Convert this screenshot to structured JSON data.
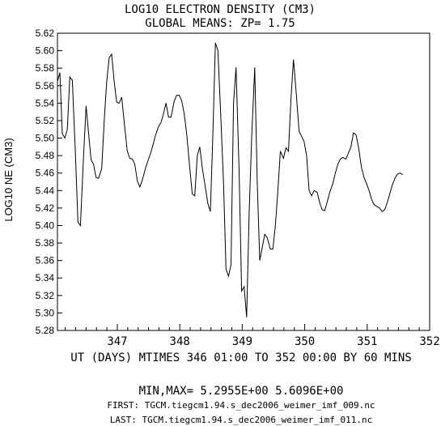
{
  "chart_data": {
    "type": "line",
    "title": "LOG10 ELECTRON DENSITY (CM3)",
    "subtitle": "GLOBAL MEANS: ZP=  1.75",
    "ylabel": "LOG10 NE (CM3)",
    "xlabel": "UT (DAYS) MTIMES 346 01:00 TO 352 00:00 BY    60 MINS",
    "xlim": [
      346.0417,
      352.0
    ],
    "ylim": [
      5.28,
      5.62
    ],
    "x_ticks": [
      347,
      348,
      349,
      350,
      351,
      352
    ],
    "y_ticks": [
      "5.28",
      "5.30",
      "5.32",
      "5.34",
      "5.36",
      "5.38",
      "5.40",
      "5.42",
      "5.44",
      "5.46",
      "5.48",
      "5.50",
      "5.52",
      "5.54",
      "5.56",
      "5.58",
      "5.60",
      "5.62"
    ],
    "grid": false,
    "series": [
      {
        "points": [
          [
            346.042,
            5.565
          ],
          [
            346.08,
            5.575
          ],
          [
            346.12,
            5.505
          ],
          [
            346.16,
            5.5
          ],
          [
            346.2,
            5.51
          ],
          [
            346.24,
            5.57
          ],
          [
            346.28,
            5.566
          ],
          [
            346.33,
            5.48
          ],
          [
            346.37,
            5.404
          ],
          [
            346.41,
            5.4
          ],
          [
            346.46,
            5.48
          ],
          [
            346.5,
            5.537
          ],
          [
            346.54,
            5.505
          ],
          [
            346.58,
            5.475
          ],
          [
            346.62,
            5.47
          ],
          [
            346.66,
            5.455
          ],
          [
            346.7,
            5.454
          ],
          [
            346.75,
            5.465
          ],
          [
            346.79,
            5.52
          ],
          [
            346.83,
            5.565
          ],
          [
            346.87,
            5.592
          ],
          [
            346.91,
            5.596
          ],
          [
            346.95,
            5.565
          ],
          [
            346.99,
            5.541
          ],
          [
            347.03,
            5.54
          ],
          [
            347.07,
            5.547
          ],
          [
            347.12,
            5.512
          ],
          [
            347.16,
            5.485
          ],
          [
            347.2,
            5.477
          ],
          [
            347.24,
            5.476
          ],
          [
            347.28,
            5.47
          ],
          [
            347.32,
            5.451
          ],
          [
            347.36,
            5.444
          ],
          [
            347.4,
            5.452
          ],
          [
            347.45,
            5.465
          ],
          [
            347.49,
            5.474
          ],
          [
            347.53,
            5.482
          ],
          [
            347.57,
            5.492
          ],
          [
            347.61,
            5.503
          ],
          [
            347.66,
            5.513
          ],
          [
            347.7,
            5.518
          ],
          [
            347.74,
            5.528
          ],
          [
            347.78,
            5.54
          ],
          [
            347.82,
            5.524
          ],
          [
            347.86,
            5.524
          ],
          [
            347.91,
            5.542
          ],
          [
            347.95,
            5.549
          ],
          [
            347.99,
            5.549
          ],
          [
            348.03,
            5.543
          ],
          [
            348.07,
            5.528
          ],
          [
            348.11,
            5.505
          ],
          [
            348.15,
            5.473
          ],
          [
            348.2,
            5.436
          ],
          [
            348.24,
            5.434
          ],
          [
            348.28,
            5.48
          ],
          [
            348.32,
            5.49
          ],
          [
            348.36,
            5.466
          ],
          [
            348.4,
            5.448
          ],
          [
            348.45,
            5.425
          ],
          [
            348.49,
            5.416
          ],
          [
            348.53,
            5.505
          ],
          [
            348.57,
            5.609
          ],
          [
            348.61,
            5.6
          ],
          [
            348.66,
            5.52
          ],
          [
            348.7,
            5.45
          ],
          [
            348.74,
            5.35
          ],
          [
            348.78,
            5.342
          ],
          [
            348.82,
            5.355
          ],
          [
            348.86,
            5.54
          ],
          [
            348.9,
            5.581
          ],
          [
            348.95,
            5.462
          ],
          [
            348.99,
            5.325
          ],
          [
            349.03,
            5.33
          ],
          [
            349.07,
            5.295
          ],
          [
            349.11,
            5.414
          ],
          [
            349.15,
            5.5
          ],
          [
            349.2,
            5.581
          ],
          [
            349.24,
            5.45
          ],
          [
            349.28,
            5.36
          ],
          [
            349.32,
            5.375
          ],
          [
            349.36,
            5.39
          ],
          [
            349.4,
            5.386
          ],
          [
            349.45,
            5.373
          ],
          [
            349.49,
            5.373
          ],
          [
            349.53,
            5.4
          ],
          [
            349.57,
            5.44
          ],
          [
            349.61,
            5.485
          ],
          [
            349.66,
            5.477
          ],
          [
            349.7,
            5.489
          ],
          [
            349.74,
            5.485
          ],
          [
            349.78,
            5.545
          ],
          [
            349.82,
            5.59
          ],
          [
            349.86,
            5.555
          ],
          [
            349.91,
            5.508
          ],
          [
            349.95,
            5.502
          ],
          [
            349.99,
            5.496
          ],
          [
            350.03,
            5.48
          ],
          [
            350.07,
            5.44
          ],
          [
            350.11,
            5.434
          ],
          [
            350.15,
            5.44
          ],
          [
            350.2,
            5.438
          ],
          [
            350.24,
            5.426
          ],
          [
            350.28,
            5.418
          ],
          [
            350.32,
            5.417
          ],
          [
            350.36,
            5.427
          ],
          [
            350.4,
            5.438
          ],
          [
            350.45,
            5.448
          ],
          [
            350.49,
            5.46
          ],
          [
            350.53,
            5.47
          ],
          [
            350.57,
            5.476
          ],
          [
            350.61,
            5.478
          ],
          [
            350.66,
            5.476
          ],
          [
            350.7,
            5.483
          ],
          [
            350.74,
            5.49
          ],
          [
            350.78,
            5.506
          ],
          [
            350.82,
            5.504
          ],
          [
            350.86,
            5.49
          ],
          [
            350.91,
            5.466
          ],
          [
            350.95,
            5.455
          ],
          [
            350.99,
            5.448
          ],
          [
            351.03,
            5.44
          ],
          [
            351.07,
            5.43
          ],
          [
            351.11,
            5.424
          ],
          [
            351.15,
            5.422
          ],
          [
            351.2,
            5.42
          ],
          [
            351.24,
            5.416
          ],
          [
            351.28,
            5.418
          ],
          [
            351.32,
            5.426
          ],
          [
            351.36,
            5.436
          ],
          [
            351.4,
            5.446
          ],
          [
            351.45,
            5.455
          ],
          [
            351.49,
            5.459
          ],
          [
            351.53,
            5.46
          ],
          [
            351.57,
            5.458
          ]
        ]
      }
    ]
  },
  "footer": {
    "minmax": "MIN,MAX=  5.2955E+00  5.6096E+00",
    "first": "FIRST: TGCM.tiegcm1.94.s_dec2006_weimer_imf_009.nc",
    "last": "LAST:  TGCM.tiegcm1.94.s_dec2006_weimer_imf_011.nc"
  }
}
